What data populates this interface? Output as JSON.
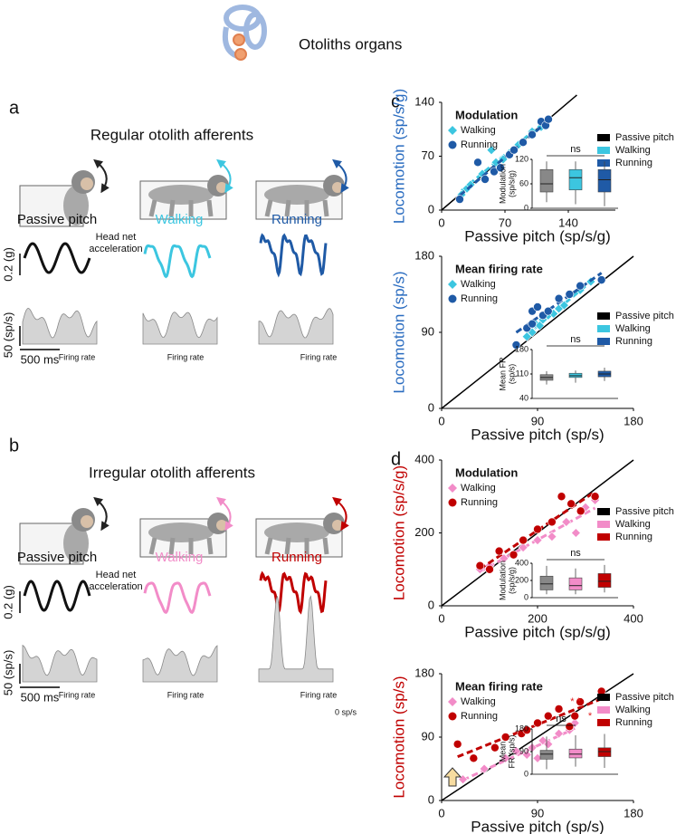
{
  "header": {
    "title": "Otoliths organs"
  },
  "panel_a": {
    "letter": "a",
    "title": "Regular otolith afferents",
    "conditions": [
      "Passive pitch",
      "Walking",
      "Running"
    ],
    "condition_colors": [
      "#111111",
      "#3cc6e0",
      "#1f5aa6"
    ],
    "accel_label": [
      "Head net",
      "acceleration"
    ],
    "accel_scale": "0.2 (g)",
    "rate_scale": "50 (sp/s)",
    "time_scale": "500 ms",
    "rate_labels": [
      "Firing rate",
      "Firing rate",
      "Firing rate"
    ]
  },
  "panel_b": {
    "letter": "b",
    "title": "Irregular otolith afferents",
    "conditions": [
      "Passive pitch",
      "Walking",
      "Running"
    ],
    "condition_colors": [
      "#111111",
      "#f28cc8",
      "#c00000"
    ],
    "accel_label": [
      "Head net",
      "acceleration"
    ],
    "accel_scale": "0.2 (g)",
    "rate_scale": "50 (sp/s)",
    "time_scale": "500 ms",
    "rate_labels": [
      "Firing rate",
      "Firing rate",
      "Firing rate"
    ],
    "zero_label": "0 sp/s"
  },
  "chart_data": [
    {
      "type": "scatter",
      "label": "c",
      "title": "Modulation",
      "xlabel": "Passive pitch (sp/s/g)",
      "ylabel": "Locomotion (sp/s/g)",
      "ylabel_color": "#2a6cc0",
      "xlim": [
        0,
        140
      ],
      "xticks": [
        0,
        70,
        140
      ],
      "ylim": [
        0,
        140
      ],
      "yticks": [
        0,
        70,
        140
      ],
      "reference": "Passive pitch",
      "series": [
        {
          "name": "Walking",
          "color": "#3cc6e0",
          "marker": "diamond",
          "x": [
            22,
            28,
            32,
            45,
            55,
            60,
            68,
            85,
            100,
            110,
            118
          ],
          "values": [
            20,
            28,
            33,
            47,
            78,
            62,
            66,
            85,
            102,
            108,
            118
          ]
        },
        {
          "name": "Running",
          "color": "#1f5aa6",
          "marker": "circle",
          "x": [
            20,
            40,
            48,
            58,
            65,
            75,
            80,
            90,
            100,
            110,
            115,
            118
          ],
          "values": [
            14,
            62,
            40,
            50,
            55,
            72,
            78,
            88,
            98,
            115,
            110,
            118
          ]
        }
      ],
      "inset": {
        "ylabel": [
          "Modulation",
          "(sp/s/g)"
        ],
        "ylim": [
          0,
          120
        ],
        "yticks": [
          0,
          60,
          120
        ],
        "annotations": [
          "ns"
        ],
        "boxes": [
          {
            "color": "#888888",
            "low": 15,
            "q1": 40,
            "median": 60,
            "q3": 95,
            "high": 115
          },
          {
            "color": "#3cc6e0",
            "low": 10,
            "q1": 45,
            "median": 75,
            "q3": 95,
            "high": 115
          },
          {
            "color": "#1f5aa6",
            "low": 5,
            "q1": 40,
            "median": 70,
            "q3": 95,
            "high": 115
          }
        ]
      }
    },
    {
      "type": "scatter",
      "title": "Mean firing rate",
      "xlabel": "Passive pitch (sp/s)",
      "ylabel": "Locomotion (sp/s)",
      "ylabel_color": "#2a6cc0",
      "xlim": [
        0,
        180
      ],
      "xticks": [
        0,
        90,
        180
      ],
      "ylim": [
        0,
        180
      ],
      "yticks": [
        0,
        90,
        180
      ],
      "reference": "Passive pitch",
      "series": [
        {
          "name": "Walking",
          "color": "#3cc6e0",
          "marker": "diamond",
          "x": [
            80,
            85,
            88,
            92,
            95,
            100,
            105,
            110,
            115,
            130,
            140
          ],
          "values": [
            85,
            90,
            100,
            98,
            105,
            110,
            112,
            118,
            122,
            140,
            150
          ]
        },
        {
          "name": "Running",
          "color": "#1f5aa6",
          "marker": "circle",
          "x": [
            70,
            80,
            85,
            85,
            90,
            95,
            100,
            110,
            120,
            130,
            150
          ],
          "values": [
            75,
            95,
            115,
            100,
            120,
            110,
            115,
            130,
            135,
            145,
            152
          ]
        }
      ],
      "inset": {
        "ylabel": [
          "Mean FR",
          "(sp/s)"
        ],
        "ylim": [
          40,
          180
        ],
        "yticks": [
          40,
          110,
          180
        ],
        "annotations": [
          "ns"
        ],
        "boxes": [
          {
            "color": "#888888",
            "low": 80,
            "q1": 92,
            "median": 100,
            "q3": 108,
            "high": 118
          },
          {
            "color": "#3cc6e0",
            "low": 85,
            "q1": 100,
            "median": 105,
            "q3": 112,
            "high": 120
          },
          {
            "color": "#1f5aa6",
            "low": 90,
            "q1": 102,
            "median": 110,
            "q3": 118,
            "high": 128
          }
        ]
      }
    },
    {
      "type": "scatter",
      "label": "d",
      "title": "Modulation",
      "xlabel": "Passive pitch (sp/s/g)",
      "ylabel": "Locomotion (sp/s/g)",
      "ylabel_color": "#c00000",
      "xlim": [
        0,
        400
      ],
      "xticks": [
        0,
        200,
        400
      ],
      "ylim": [
        0,
        400
      ],
      "yticks": [
        0,
        200,
        400
      ],
      "reference": "Passive pitch",
      "series": [
        {
          "name": "Walking",
          "color": "#f28cc8",
          "marker": "diamond",
          "x": [
            80,
            100,
            130,
            170,
            200,
            230,
            260,
            280,
            300,
            320
          ],
          "values": [
            100,
            110,
            130,
            160,
            180,
            190,
            230,
            200,
            270,
            290
          ]
        },
        {
          "name": "Running",
          "color": "#c00000",
          "marker": "circle",
          "x": [
            80,
            100,
            120,
            150,
            170,
            200,
            230,
            250,
            270,
            290,
            320
          ],
          "values": [
            110,
            100,
            150,
            140,
            180,
            210,
            230,
            300,
            280,
            260,
            300
          ]
        }
      ],
      "inset": {
        "ylabel": [
          "Modulation",
          "(sp/s/g)"
        ],
        "ylim": [
          0,
          400
        ],
        "yticks": [
          0,
          200,
          400
        ],
        "annotations": [
          "ns"
        ],
        "boxes": [
          {
            "color": "#888888",
            "low": 40,
            "q1": 90,
            "median": 160,
            "q3": 250,
            "high": 370
          },
          {
            "color": "#f28cc8",
            "low": 40,
            "q1": 90,
            "median": 140,
            "q3": 230,
            "high": 340
          },
          {
            "color": "#c00000",
            "low": 60,
            "q1": 120,
            "median": 190,
            "q3": 280,
            "high": 380
          }
        ]
      }
    },
    {
      "type": "scatter",
      "title": "Mean firing rate",
      "xlabel": "Passive pitch (sp/s)",
      "ylabel": "Locomotion (sp/s)",
      "ylabel_color": "#c00000",
      "xlim": [
        0,
        180
      ],
      "xticks": [
        0,
        90,
        180
      ],
      "ylim": [
        0,
        180
      ],
      "yticks": [
        0,
        90,
        180
      ],
      "reference": "Passive pitch",
      "series": [
        {
          "name": "Walking",
          "color": "#f28cc8",
          "marker": "diamond",
          "x": [
            20,
            40,
            60,
            70,
            80,
            85,
            90,
            95,
            100,
            110,
            120,
            125
          ],
          "values": [
            30,
            45,
            60,
            70,
            65,
            75,
            60,
            85,
            80,
            95,
            100,
            110
          ]
        },
        {
          "name": "Running",
          "color": "#c00000",
          "marker": "circle",
          "x": [
            15,
            30,
            50,
            60,
            75,
            80,
            90,
            100,
            110,
            120,
            125,
            130,
            150
          ],
          "values": [
            80,
            60,
            75,
            90,
            95,
            100,
            110,
            120,
            130,
            105,
            120,
            140,
            155
          ]
        }
      ],
      "inset": {
        "ylabel": [
          "Mean",
          "FR (sp/s)"
        ],
        "ylim": [
          0,
          180
        ],
        "yticks": [
          0,
          90,
          180
        ],
        "annotations": [
          "ns",
          "* *",
          "*"
        ],
        "boxes": [
          {
            "color": "#888888",
            "low": 20,
            "q1": 60,
            "median": 80,
            "q3": 95,
            "high": 150
          },
          {
            "color": "#f28cc8",
            "low": 30,
            "q1": 65,
            "median": 80,
            "q3": 100,
            "high": 155
          },
          {
            "color": "#c00000",
            "low": 25,
            "q1": 70,
            "median": 90,
            "q3": 105,
            "high": 160
          }
        ]
      }
    }
  ]
}
